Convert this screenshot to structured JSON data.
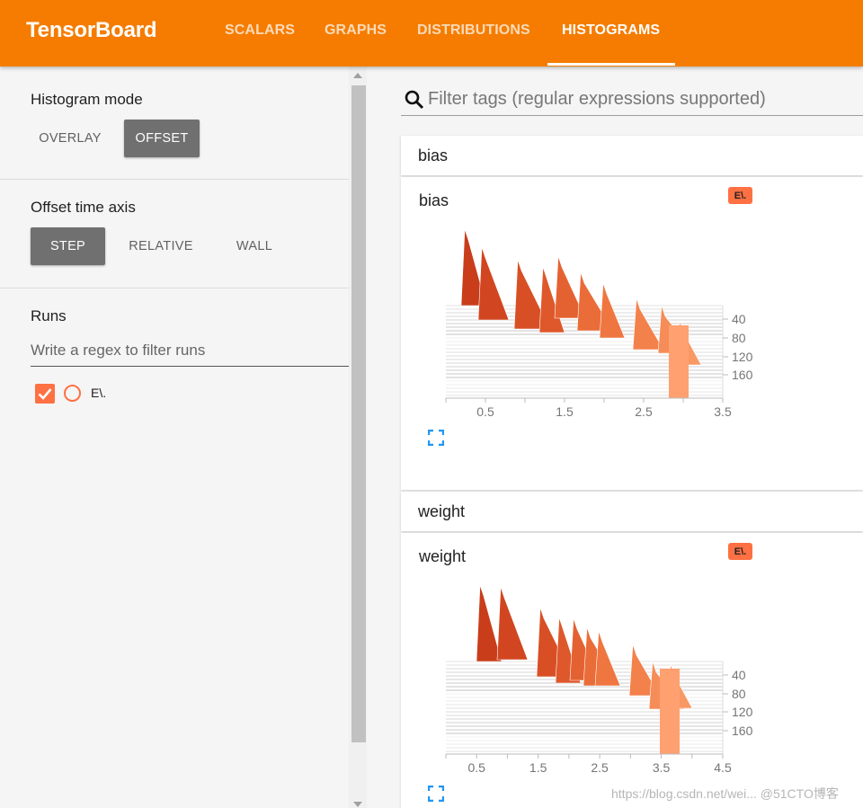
{
  "app": {
    "title": "TensorBoard"
  },
  "tabs": [
    {
      "label": "SCALARS",
      "active": false
    },
    {
      "label": "GRAPHS",
      "active": false
    },
    {
      "label": "DISTRIBUTIONS",
      "active": false
    },
    {
      "label": "HISTOGRAMS",
      "active": true
    }
  ],
  "sidebar": {
    "histogram_mode": {
      "title": "Histogram mode",
      "options": [
        "OVERLAY",
        "OFFSET"
      ],
      "selected": "OFFSET"
    },
    "offset_axis": {
      "title": "Offset time axis",
      "options": [
        "STEP",
        "RELATIVE",
        "WALL"
      ],
      "selected": "STEP"
    },
    "runs": {
      "title": "Runs",
      "filter_placeholder": "Write a regex to filter runs",
      "items": [
        {
          "label": "E\\.",
          "checked": true
        }
      ]
    }
  },
  "main": {
    "search_placeholder": "Filter tags (regular expressions supported)",
    "categories": [
      {
        "name": "bias",
        "card_title": "bias",
        "run_tag": "E\\.",
        "x_ticks": [
          "0.5",
          "1.5",
          "2.5",
          "3.5"
        ],
        "y_ticks": [
          "40",
          "80",
          "120",
          "160"
        ]
      },
      {
        "name": "weight",
        "card_title": "weight",
        "run_tag": "E\\.",
        "x_ticks": [
          "0.5",
          "1.5",
          "2.5",
          "3.5",
          "4.5"
        ],
        "y_ticks": [
          "40",
          "80",
          "120",
          "160"
        ]
      }
    ]
  },
  "watermark": "https://blog.csdn.net/wei... @51CTO博客",
  "colors": {
    "accent": "#f57c00",
    "run": "#ff7043"
  }
}
